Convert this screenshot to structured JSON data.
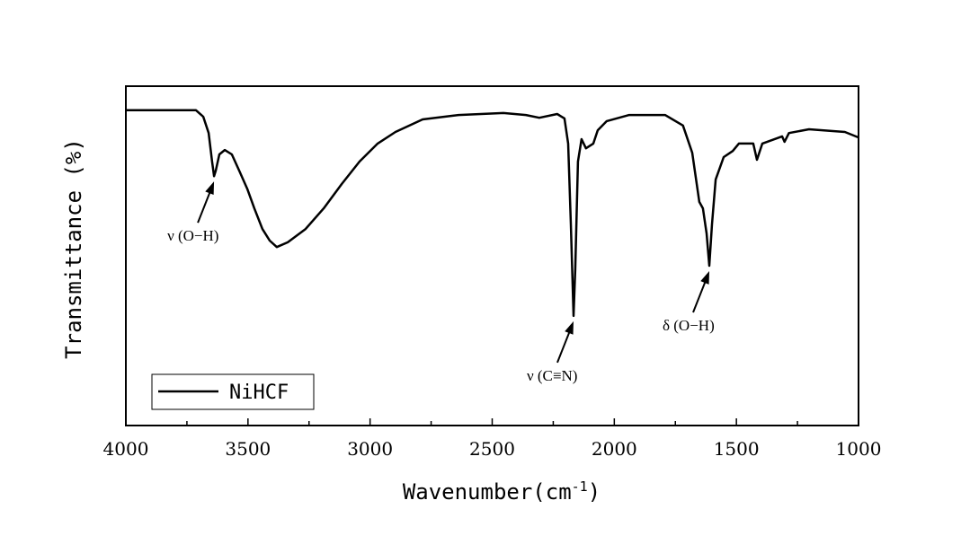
{
  "chart_data": {
    "type": "line",
    "title": "",
    "xlabel": "Wavenumber(cm",
    "xlabel_sup": "-1",
    "xlabel_close": ")",
    "ylabel": "Transmittance (%)",
    "xlim": [
      4000,
      1000
    ],
    "ylim": [
      0,
      100
    ],
    "x_reversed": true,
    "xticks": [
      4000,
      3500,
      3000,
      2500,
      2000,
      1500,
      1000
    ],
    "xtick_labels": [
      "4000",
      "3500",
      "3000",
      "2500",
      "2000",
      "1500",
      "1000"
    ],
    "y_ticks_shown": false,
    "grid": false,
    "legend": {
      "placement": "bottom-left",
      "entries": [
        "NiHCF"
      ]
    },
    "series": [
      {
        "name": "NiHCF",
        "color": "#000000",
        "x": [
          4000,
          3713,
          3683,
          3661,
          3647,
          3639,
          3632,
          3617,
          3595,
          3566,
          3536,
          3503,
          3474,
          3441,
          3411,
          3382,
          3337,
          3264,
          3190,
          3116,
          3043,
          2969,
          2896,
          2785,
          2638,
          2454,
          2362,
          2307,
          2234,
          2204,
          2189,
          2178,
          2167,
          2160,
          2149,
          2134,
          2116,
          2086,
          2068,
          2031,
          1939,
          1792,
          1719,
          1681,
          1652,
          1637,
          1622,
          1611,
          1600,
          1585,
          1552,
          1515,
          1490,
          1431,
          1416,
          1394,
          1313,
          1303,
          1285,
          1203,
          1056,
          1000
        ],
        "y": [
          92.9,
          92.9,
          91.0,
          86.2,
          77.8,
          73.5,
          75.1,
          79.9,
          81.2,
          79.9,
          75.1,
          69.8,
          64.0,
          57.9,
          54.5,
          52.6,
          54.0,
          57.9,
          64.0,
          71.2,
          77.8,
          83.1,
          86.5,
          90.2,
          91.5,
          92.1,
          91.5,
          90.7,
          91.8,
          90.5,
          83.1,
          59.3,
          32.3,
          46.0,
          77.8,
          84.4,
          81.7,
          83.1,
          87.0,
          89.7,
          91.5,
          91.5,
          88.4,
          80.4,
          65.9,
          64.0,
          56.6,
          47.1,
          59.3,
          72.5,
          79.1,
          80.9,
          83.1,
          83.1,
          78.3,
          83.1,
          85.2,
          83.6,
          86.2,
          87.3,
          86.5,
          84.9
        ]
      }
    ],
    "annotations": [
      {
        "text": "ν (O−H)",
        "x": 3639
      },
      {
        "text": "ν (C≡N)",
        "x": 2167
      },
      {
        "text": "δ (O−H)",
        "x": 1611
      }
    ]
  }
}
